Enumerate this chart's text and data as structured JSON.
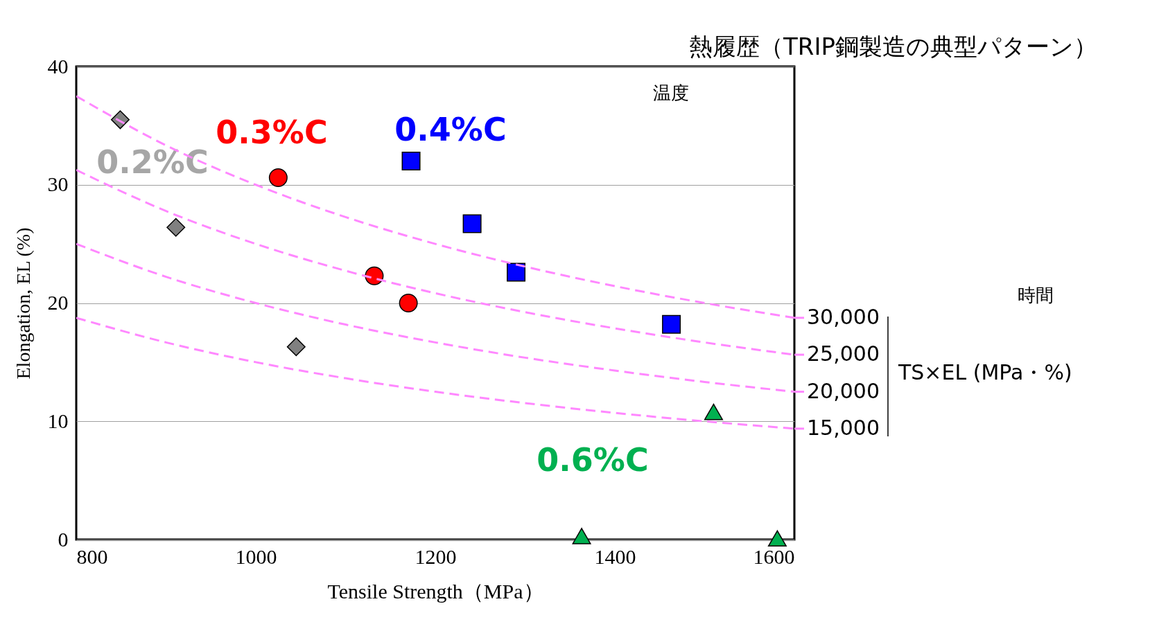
{
  "chart_data": {
    "type": "scatter",
    "xlabel": "Tensile Strength（MPa）",
    "ylabel": "Elongation, EL (%)",
    "legend_title": "TS×EL (MPa・%)",
    "xlim": [
      800,
      1600
    ],
    "xticks": [
      800,
      1000,
      1200,
      1400,
      1600
    ],
    "ylim": [
      0,
      40
    ],
    "yticks": [
      0,
      10,
      20,
      30,
      40
    ],
    "grid": "y",
    "legend": "right",
    "annotations": [
      "熱履歴（TRIP鋼製造の典型パターン）",
      "温度",
      "時間"
    ],
    "series": [
      {
        "name": "0.2%C",
        "color": "#808080",
        "marker": "diamond",
        "x": [
          849,
          911,
          1045
        ],
        "values": [
          35.5,
          26.4,
          16.3
        ]
      },
      {
        "name": "0.3%C",
        "color": "#ff0000",
        "marker": "circle",
        "x": [
          1025,
          1132,
          1170
        ],
        "values": [
          30.6,
          22.3,
          20.0
        ]
      },
      {
        "name": "0.4%C",
        "color": "#0000ff",
        "marker": "square",
        "x": [
          1173,
          1241,
          1290,
          1463
        ],
        "values": [
          32.0,
          26.7,
          22.6,
          18.2
        ]
      },
      {
        "name": "0.6%C",
        "color": "#00b050",
        "marker": "triangle",
        "x": [
          1363,
          1510,
          1581
        ],
        "values": [
          0.3,
          10.8,
          0.1
        ]
      },
      {
        "name": "30,000",
        "type": "line",
        "color": "#ff88ff",
        "line_style": "dashed",
        "marker": "none",
        "x": [
          800,
          900,
          1000,
          1100,
          1200,
          1300,
          1400,
          1500,
          1600
        ],
        "values": [
          37.5,
          33.33,
          30,
          27.27,
          25,
          23.08,
          21.43,
          20,
          18.75
        ]
      },
      {
        "name": "25,000",
        "type": "line",
        "color": "#ff88ff",
        "line_style": "dashed",
        "marker": "none",
        "x": [
          800,
          900,
          1000,
          1100,
          1200,
          1300,
          1400,
          1500,
          1600
        ],
        "values": [
          31.25,
          27.78,
          25,
          22.73,
          20.83,
          19.23,
          17.86,
          16.67,
          15.63
        ]
      },
      {
        "name": "20,000",
        "type": "line",
        "color": "#ff88ff",
        "line_style": "dashed",
        "marker": "none",
        "x": [
          800,
          900,
          1000,
          1100,
          1200,
          1300,
          1400,
          1500,
          1600
        ],
        "values": [
          25,
          22.22,
          20,
          18.18,
          16.67,
          15.38,
          14.29,
          13.33,
          12.5
        ]
      },
      {
        "name": "15,000",
        "type": "line",
        "color": "#ff88ff",
        "line_style": "dashed",
        "marker": "none",
        "x": [
          800,
          900,
          1000,
          1100,
          1200,
          1300,
          1400,
          1500,
          1600
        ],
        "values": [
          18.75,
          16.67,
          15,
          13.64,
          12.5,
          11.54,
          10.71,
          10,
          9.38
        ]
      }
    ]
  }
}
